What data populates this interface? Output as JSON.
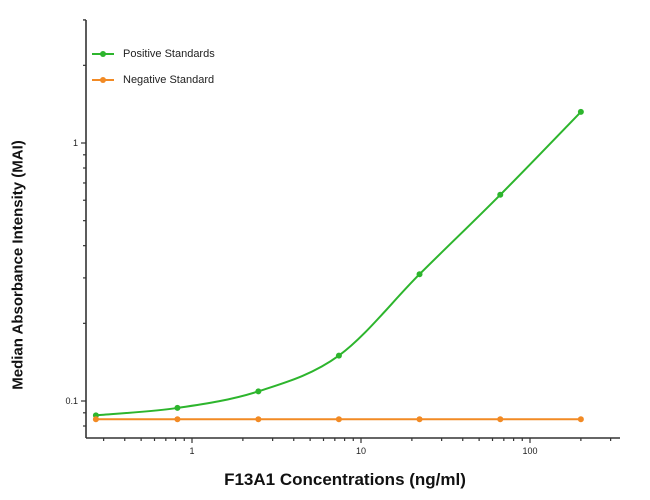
{
  "chart_data": {
    "type": "line",
    "title": "",
    "xlabel": "F13A1 Concentrations (ng/ml)",
    "ylabel": "Median Absorbance Intensity (MAI)",
    "xscale": "log",
    "yscale": "log",
    "xlim": [
      0.22,
      250
    ],
    "ylim": [
      0.075,
      3.0
    ],
    "x_ticks": [
      "1",
      "10",
      "100"
    ],
    "y_ticks": [
      "0.1",
      "1"
    ],
    "grid": false,
    "legend_position": "upper left",
    "x": [
      0.27,
      0.82,
      2.47,
      7.4,
      22.2,
      66.7,
      200
    ],
    "series": [
      {
        "name": "Positive Standards",
        "color": "#2db52d",
        "marker": "circle",
        "values": [
          0.088,
          0.094,
          0.109,
          0.15,
          0.31,
          0.63,
          1.32
        ]
      },
      {
        "name": "Negative Standard",
        "color": "#f28a24",
        "marker": "circle",
        "values": [
          0.085,
          0.085,
          0.085,
          0.085,
          0.085,
          0.085,
          0.085
        ]
      }
    ]
  },
  "axes": {
    "x_label": "F13A1 Concentrations (ng/ml)",
    "y_label": "Median Absorbance Intensity (MAI)"
  },
  "legend": [
    {
      "label": "Positive Standards",
      "color": "#2db52d"
    },
    {
      "label": "Negative Standard",
      "color": "#f28a24"
    }
  ]
}
